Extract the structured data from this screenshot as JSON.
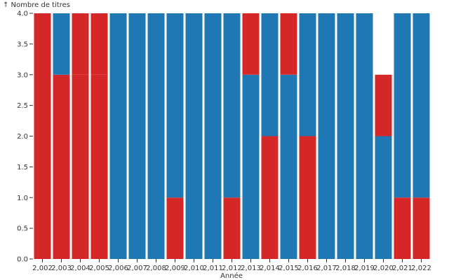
{
  "chart_data": {
    "type": "bar",
    "stacked": true,
    "ylabel": "↑ Nombre de titres",
    "xlabel": "Année",
    "ylim": [
      0,
      4
    ],
    "y_ticks": [
      "0.0",
      "0.5",
      "1.0",
      "1.5",
      "2.0",
      "2.5",
      "3.0",
      "3.5",
      "4.0"
    ],
    "categories": [
      "2,002",
      "2,003",
      "2,004",
      "2,005",
      "2,006",
      "2,007",
      "2,008",
      "2,009",
      "2,010",
      "2,011",
      "2,012",
      "2,013",
      "2,014",
      "2,015",
      "2,016",
      "2,017",
      "2,018",
      "2,019",
      "2,020",
      "2,021",
      "2,022"
    ],
    "x_tick_labels": [
      "2,002",
      "2,003",
      "2,004",
      "2,005",
      "2,006",
      "2,007",
      "2,008",
      "2,009",
      "2,010",
      "2,011",
      "2,012",
      "2,013",
      "2,014",
      "2,015",
      "2,016",
      "2,017",
      "2,018",
      "2,019",
      "2,020",
      "2,021",
      "2,022"
    ],
    "series": [
      {
        "color": "#d62728",
        "values": [
          4,
          3,
          3,
          3,
          0,
          0,
          0,
          1,
          0,
          0,
          1,
          0,
          2,
          0,
          2,
          0,
          0,
          0,
          0,
          1,
          1
        ]
      },
      {
        "color": "#1f77b4",
        "values": [
          0,
          0,
          0,
          0,
          0,
          0,
          0,
          0,
          0,
          0,
          0,
          3,
          0,
          3,
          0,
          0,
          0,
          0,
          2,
          0,
          0
        ]
      },
      {
        "color": "#d62728",
        "values": [
          0,
          0,
          1,
          1,
          0,
          0,
          0,
          0,
          0,
          0,
          0,
          1,
          0,
          1,
          0,
          0,
          0,
          0,
          1,
          0,
          0
        ]
      },
      {
        "color": "#1f77b4",
        "values": [
          0,
          1,
          0,
          0,
          4,
          4,
          4,
          3,
          4,
          4,
          3,
          0,
          2,
          0,
          2,
          4,
          4,
          4,
          0,
          3,
          3
        ]
      }
    ]
  }
}
